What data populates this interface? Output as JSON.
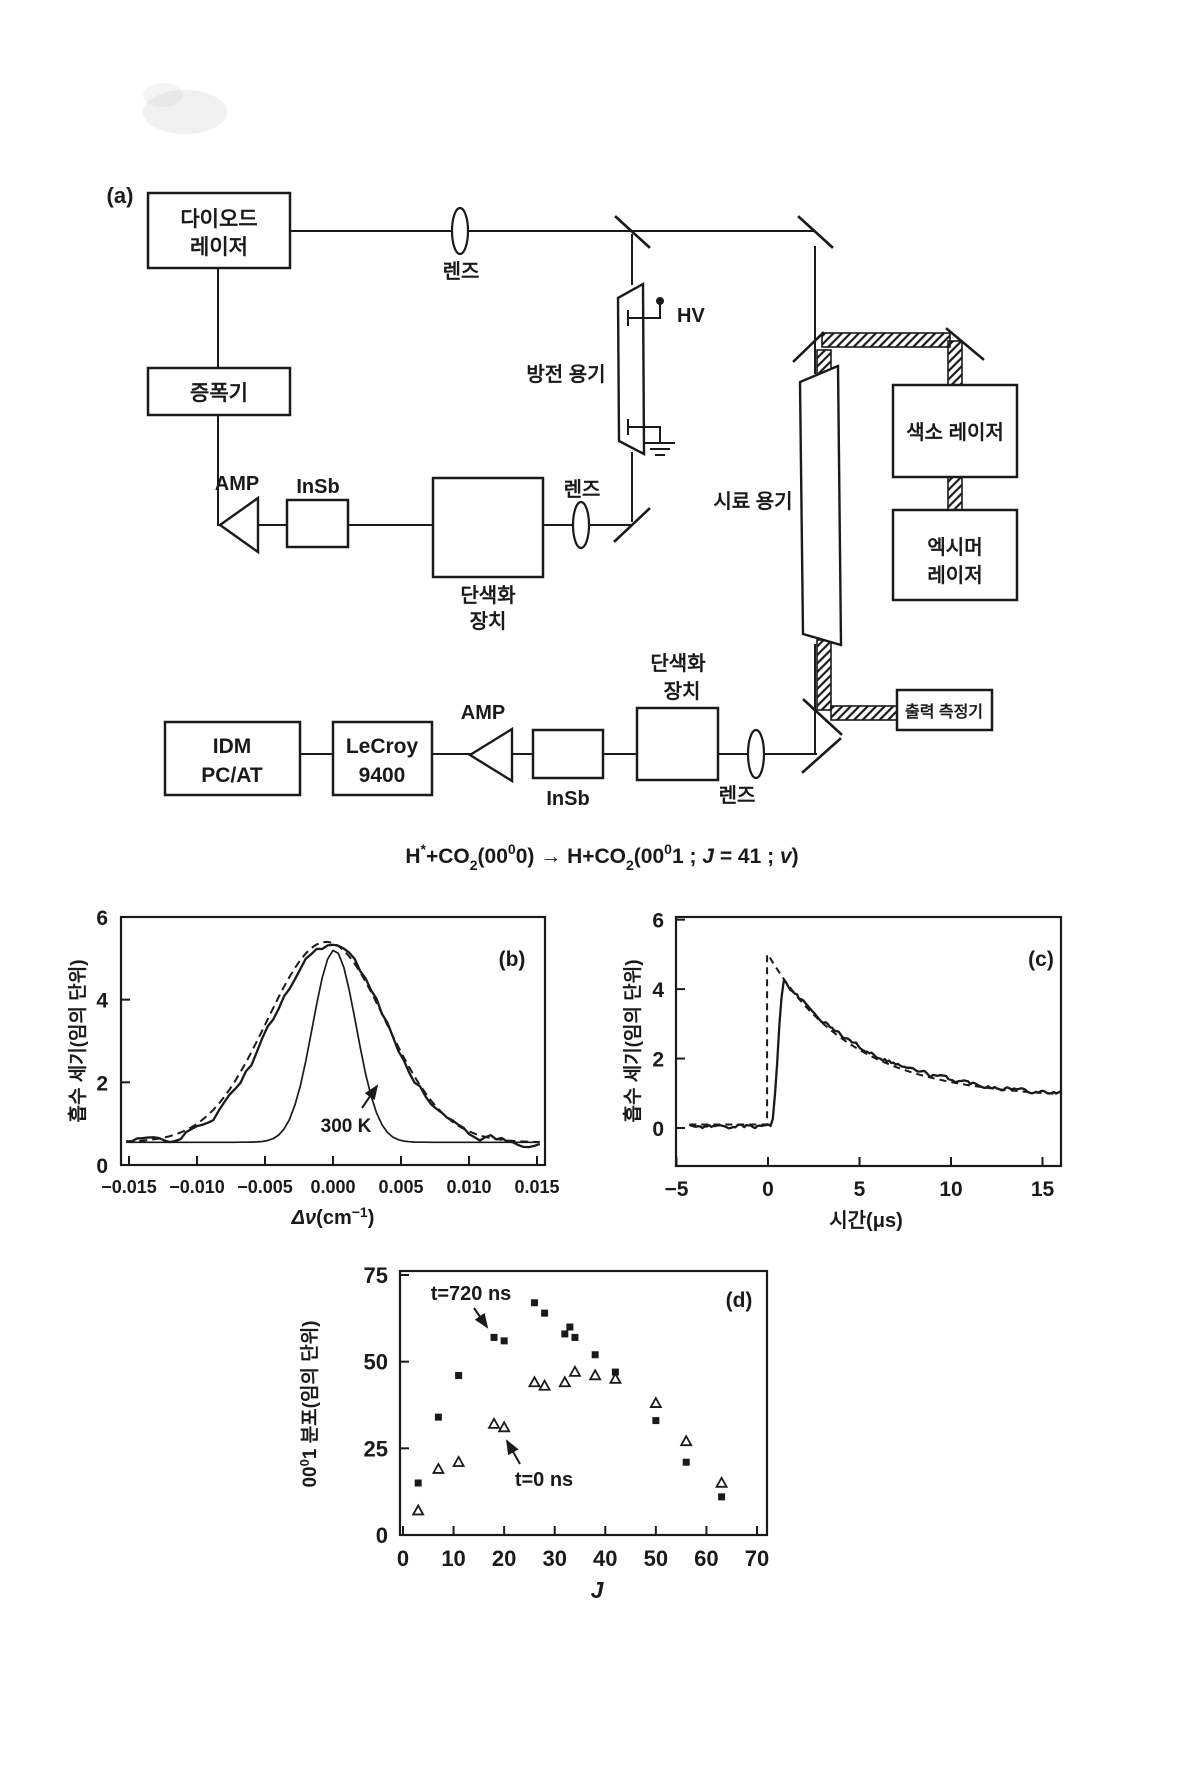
{
  "colors": {
    "paper": "#ffffff",
    "ink": "#1a1a1a"
  },
  "diagram": {
    "panel_label": "(a)",
    "boxes": {
      "diode_laser": {
        "line1": "다이오드",
        "line2": "레이저"
      },
      "amplifier": {
        "line1": "증폭기"
      },
      "monochromator1": {
        "line1": "단색화",
        "line2": "장치"
      },
      "insb1": {
        "label": "InSb"
      },
      "dye_laser": {
        "line1": "색소 레이저"
      },
      "excimer_laser": {
        "line1": "엑시머",
        "line2": "레이저"
      },
      "power_meter": {
        "line1": "출력 측정기"
      },
      "idm_pc": {
        "line1": "IDM",
        "line2": "PC/AT"
      },
      "lecroy": {
        "line1": "LeCroy",
        "line2": "9400"
      },
      "insb2": {
        "label": "InSb"
      },
      "monochromator2": {
        "line1": "단색화",
        "line2": "장치"
      }
    },
    "labels": {
      "lens1": "렌즈",
      "lens2": "렌즈",
      "lens3": "렌즈",
      "discharge_cell": "방전 용기",
      "hv": "HV",
      "sample_cell": "시료 용기",
      "amp1": "AMP",
      "amp2": "AMP"
    }
  },
  "equation": {
    "full": "H*+CO2(00^0 0) → H+CO2(00^0 1 ; J = 41 ; v)",
    "p1": "H",
    "sup1": "*",
    "p2": "+CO",
    "sub1": "2",
    "p3": "(00",
    "sup2": "0",
    "p4": "0)",
    "arrow": " → ",
    "p5": "H+CO",
    "sub2": "2",
    "p6": "(00",
    "sup3": "0",
    "p7": "1 ; ",
    "italic1": "J",
    "p8": " = 41 ; ",
    "italic2": "v",
    "p9": ")"
  },
  "chart_data": [
    {
      "id": "panel_b",
      "type": "line",
      "panel_label": "(b)",
      "xlabel_parts": [
        "Δν",
        "(cm",
        "−1",
        ")"
      ],
      "ylabel": "흡수 세기(임의 단위)",
      "xlim": [
        -0.0155,
        0.0155
      ],
      "ylim": [
        0,
        6
      ],
      "grid": false,
      "xticks": [
        -0.015,
        -0.01,
        -0.005,
        0,
        0.005,
        0.01,
        0.015
      ],
      "xtick_labels": [
        "−0.015",
        "−0.010",
        "−0.005",
        "0.000",
        "0.005",
        "0.010",
        "0.015"
      ],
      "yticks": [
        0,
        2,
        4,
        6
      ],
      "annotation": {
        "text": "300 K"
      },
      "series": [
        {
          "name": "measured-lineshape",
          "style": "solid-noisy",
          "model": "gaussian",
          "baseline": 0.55,
          "peak": 4.8,
          "center": -0.0003,
          "sigma": 0.0042,
          "noise": 0.07
        },
        {
          "name": "gaussian-fit",
          "style": "dashed",
          "model": "gaussian",
          "baseline": 0.55,
          "peak": 4.85,
          "center": -0.0005,
          "sigma": 0.00435,
          "noise": 0
        },
        {
          "name": "300K-profile",
          "style": "solid",
          "model": "gaussian",
          "baseline": 0.55,
          "peak": 4.65,
          "center": 0.0001,
          "sigma": 0.0016,
          "noise": 0
        }
      ]
    },
    {
      "id": "panel_c",
      "type": "line",
      "panel_label": "(c)",
      "xlabel": "시간(μs)",
      "ylabel": "흡수 세기(임의 단위)",
      "xlim": [
        -5,
        16.2
      ],
      "ylim": [
        -1.1,
        6
      ],
      "grid": false,
      "xticks": [
        -5,
        0,
        5,
        10,
        15
      ],
      "xtick_labels": [
        "−5",
        "0",
        "5",
        "10",
        "15"
      ],
      "yticks": [
        0,
        2,
        4,
        6
      ],
      "series": [
        {
          "name": "measured-transient",
          "style": "solid-noisy",
          "model": "rise-decay",
          "baseline": 0.05,
          "rise_start": 0.15,
          "peak_t": 0.9,
          "peak_v": 4.25,
          "decay_offset": 0.85,
          "decay_amp": 3.4,
          "decay_tau": 5.0,
          "noise": 0.05
        },
        {
          "name": "kinetic-fit",
          "style": "dashed",
          "model": "step-decay",
          "baseline": 0.1,
          "step_t": -0.05,
          "peak_v": 5.0,
          "decay_offset": 0.85,
          "decay_amp": 4.15,
          "decay_tau": 4.6
        }
      ]
    },
    {
      "id": "panel_d",
      "type": "scatter",
      "panel_label": "(d)",
      "xlabel": "J",
      "ylabel_parts": [
        "00",
        "0",
        "1 분포(임의 단위)"
      ],
      "xlim": [
        0,
        72
      ],
      "ylim": [
        0,
        76
      ],
      "grid": false,
      "xticks": [
        0,
        10,
        20,
        30,
        40,
        50,
        60,
        70
      ],
      "xtick_labels": [
        "0",
        "10",
        "20",
        "30",
        "40",
        "50",
        "60",
        "70"
      ],
      "yticks": [
        0,
        25,
        50,
        75
      ],
      "annotations": [
        {
          "text": "t=720 ns"
        },
        {
          "text": "t=0 ns"
        }
      ],
      "series": [
        {
          "name": "t=720 ns",
          "marker": "filled-square",
          "points": [
            [
              3,
              15
            ],
            [
              7,
              34
            ],
            [
              11,
              46
            ],
            [
              18,
              57
            ],
            [
              20,
              56
            ],
            [
              26,
              67
            ],
            [
              28,
              64
            ],
            [
              32,
              58
            ],
            [
              33,
              60
            ],
            [
              34,
              57
            ],
            [
              38,
              52
            ],
            [
              42,
              47
            ],
            [
              50,
              33
            ],
            [
              56,
              21
            ],
            [
              63,
              11
            ]
          ]
        },
        {
          "name": "t=0 ns",
          "marker": "open-triangle",
          "points": [
            [
              3,
              7
            ],
            [
              7,
              19
            ],
            [
              11,
              21
            ],
            [
              18,
              32
            ],
            [
              20,
              31
            ],
            [
              26,
              44
            ],
            [
              28,
              43
            ],
            [
              32,
              44
            ],
            [
              34,
              47
            ],
            [
              38,
              46
            ],
            [
              42,
              45
            ],
            [
              50,
              38
            ],
            [
              56,
              27
            ],
            [
              63,
              15
            ]
          ]
        }
      ]
    }
  ]
}
